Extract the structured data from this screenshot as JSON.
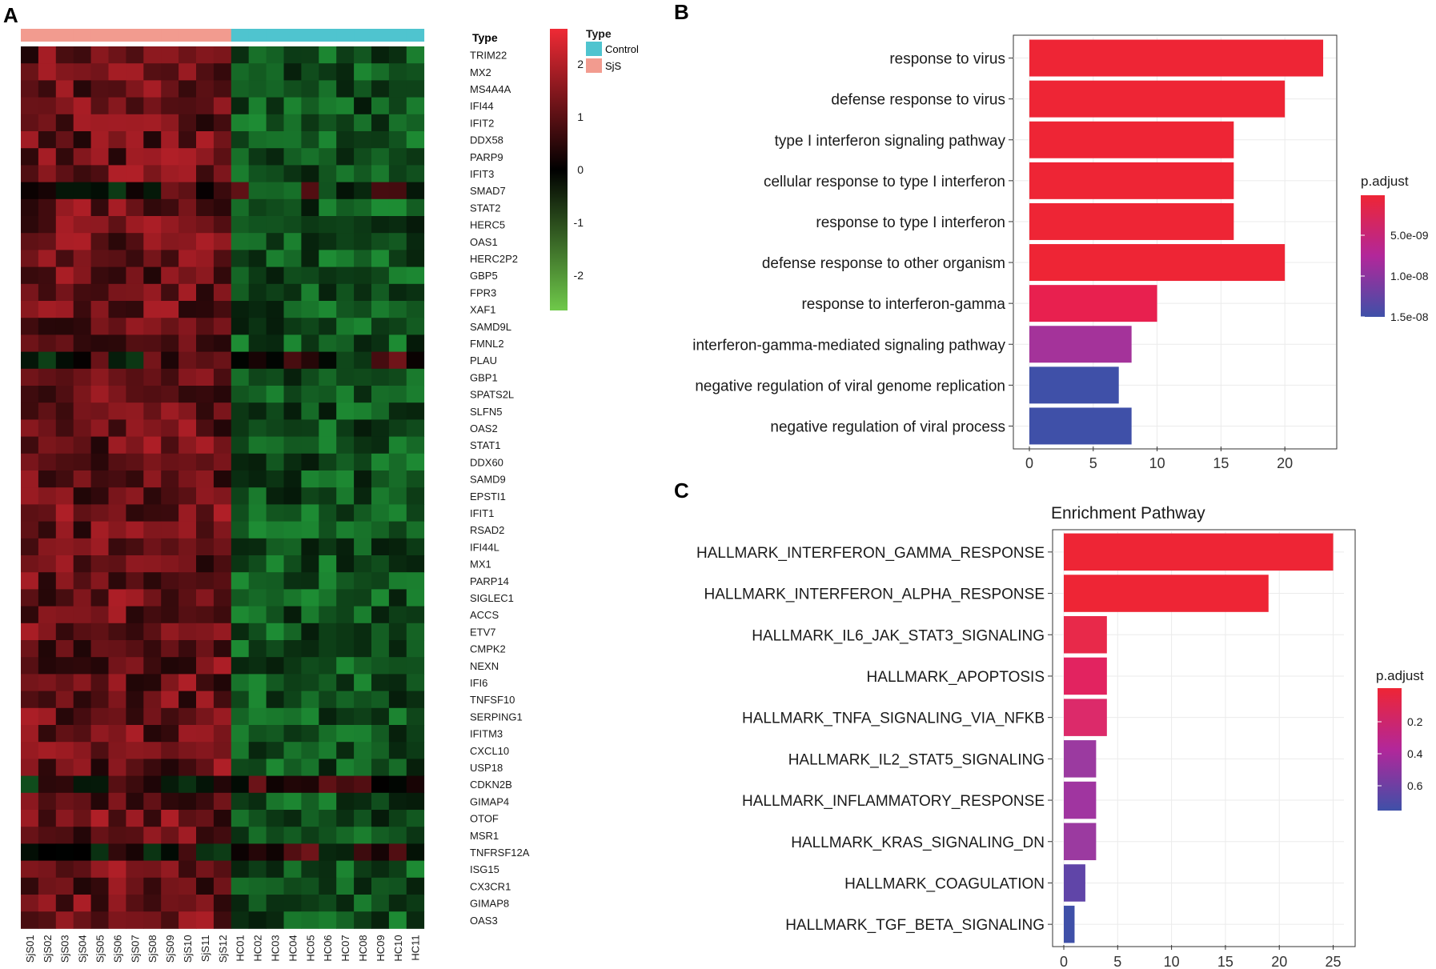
{
  "panels": {
    "a": "A",
    "b": "B",
    "c": "C"
  },
  "chart_data": [
    {
      "id": "A",
      "type": "heatmap",
      "annotation_label": "Type",
      "legend_title": "Type",
      "groups": [
        {
          "name": "Control",
          "color": "#4fc4cf"
        },
        {
          "name": "SjS",
          "color": "#f29b8f"
        }
      ],
      "scale_ticks": [
        "2",
        "1",
        "0",
        "-1",
        "-2"
      ],
      "scale_colors": {
        "high": "#ef2a35",
        "mid": "#000000",
        "low": "#6fc94a"
      },
      "columns": [
        "SjS01",
        "SjS02",
        "SjS03",
        "SjS04",
        "SjS05",
        "SjS06",
        "SjS07",
        "SjS08",
        "SjS09",
        "SjS10",
        "SjS11",
        "SjS12",
        "HC01",
        "HC02",
        "HC03",
        "HC04",
        "HC05",
        "HC06",
        "HC07",
        "HC08",
        "HC09",
        "HC10",
        "HC11"
      ],
      "column_groups": [
        "SjS",
        "SjS",
        "SjS",
        "SjS",
        "SjS",
        "SjS",
        "SjS",
        "SjS",
        "SjS",
        "SjS",
        "SjS",
        "SjS",
        "Control",
        "Control",
        "Control",
        "Control",
        "Control",
        "Control",
        "Control",
        "Control",
        "Control",
        "Control",
        "Control"
      ],
      "rows": [
        "TRIM22",
        "MX2",
        "MS4A4A",
        "IFI44",
        "IFIT2",
        "DDX58",
        "PARP9",
        "IFIT3",
        "SMAD7",
        "STAT2",
        "HERC5",
        "OAS1",
        "HERC2P2",
        "GBP5",
        "FPR3",
        "XAF1",
        "SAMD9L",
        "FMNL2",
        "PLAU",
        "GBP1",
        "SPATS2L",
        "SLFN5",
        "OAS2",
        "STAT1",
        "DDX60",
        "SAMD9",
        "EPSTI1",
        "IFIT1",
        "RSAD2",
        "IFI44L",
        "MX1",
        "PARP14",
        "SIGLEC1",
        "ACCS",
        "ETV7",
        "CMPK2",
        "NEXN",
        "IFI6",
        "TNFSF10",
        "SERPING1",
        "IFITM3",
        "CXCL10",
        "USP18",
        "CDKN2B",
        "GIMAP4",
        "OTOF",
        "MSR1",
        "TNFRSF12A",
        "ISG15",
        "CX3CR1",
        "GIMAP8",
        "OAS3"
      ],
      "values_note": "z-scored expression, approximately +1 (SjS) / -1 (Control) with per-cell variation"
    },
    {
      "id": "B",
      "type": "bar",
      "orientation": "horizontal",
      "categories": [
        "response to virus",
        "defense response to virus",
        "type I interferon signaling pathway",
        "cellular response to type I interferon",
        "response to type I interferon",
        "defense response to other organism",
        "response to interferon-gamma",
        "interferon-gamma-mediated signaling pathway",
        "negative regulation of viral genome replication",
        "negative regulation of viral process"
      ],
      "values": [
        23,
        20,
        16,
        16,
        16,
        20,
        10,
        8,
        7,
        8
      ],
      "colors": [
        "#ee2535",
        "#ee2535",
        "#ee2535",
        "#ee2535",
        "#ee2535",
        "#ee2535",
        "#e8204f",
        "#a4339a",
        "#3f50a8",
        "#3f50a8"
      ],
      "xlim": [
        0,
        24
      ],
      "xticks": [
        "0",
        "5",
        "10",
        "15",
        "20"
      ],
      "legend": {
        "title": "p.adjust",
        "ticks": [
          "5.0e-09",
          "1.0e-08",
          "1.5e-08"
        ],
        "high": "#ee2535",
        "mid": "#b2279a",
        "low": "#3f50a8"
      }
    },
    {
      "id": "C",
      "type": "bar",
      "orientation": "horizontal",
      "title": "Enrichment Pathway",
      "categories": [
        "HALLMARK_INTERFERON_GAMMA_RESPONSE",
        "HALLMARK_INTERFERON_ALPHA_RESPONSE",
        "HALLMARK_IL6_JAK_STAT3_SIGNALING",
        "HALLMARK_APOPTOSIS",
        "HALLMARK_TNFA_SIGNALING_VIA_NFKB",
        "HALLMARK_IL2_STAT5_SIGNALING",
        "HALLMARK_INFLAMMATORY_RESPONSE",
        "HALLMARK_KRAS_SIGNALING_DN",
        "HALLMARK_COAGULATION",
        "HALLMARK_TGF_BETA_SIGNALING"
      ],
      "values": [
        25,
        19,
        4,
        4,
        4,
        3,
        3,
        3,
        2,
        1
      ],
      "colors": [
        "#ee2535",
        "#ee2535",
        "#e8294a",
        "#e22360",
        "#dc2a6a",
        "#9b3aa0",
        "#a035a0",
        "#9b3aa0",
        "#6045a8",
        "#3f50a8"
      ],
      "xlim": [
        0,
        26
      ],
      "xticks": [
        "0",
        "5",
        "10",
        "15",
        "20",
        "25"
      ],
      "legend": {
        "title": "p.adjust",
        "ticks": [
          "0.2",
          "0.4",
          "0.6"
        ],
        "high": "#ee2535",
        "mid": "#b2279a",
        "low": "#3f50a8"
      }
    }
  ]
}
